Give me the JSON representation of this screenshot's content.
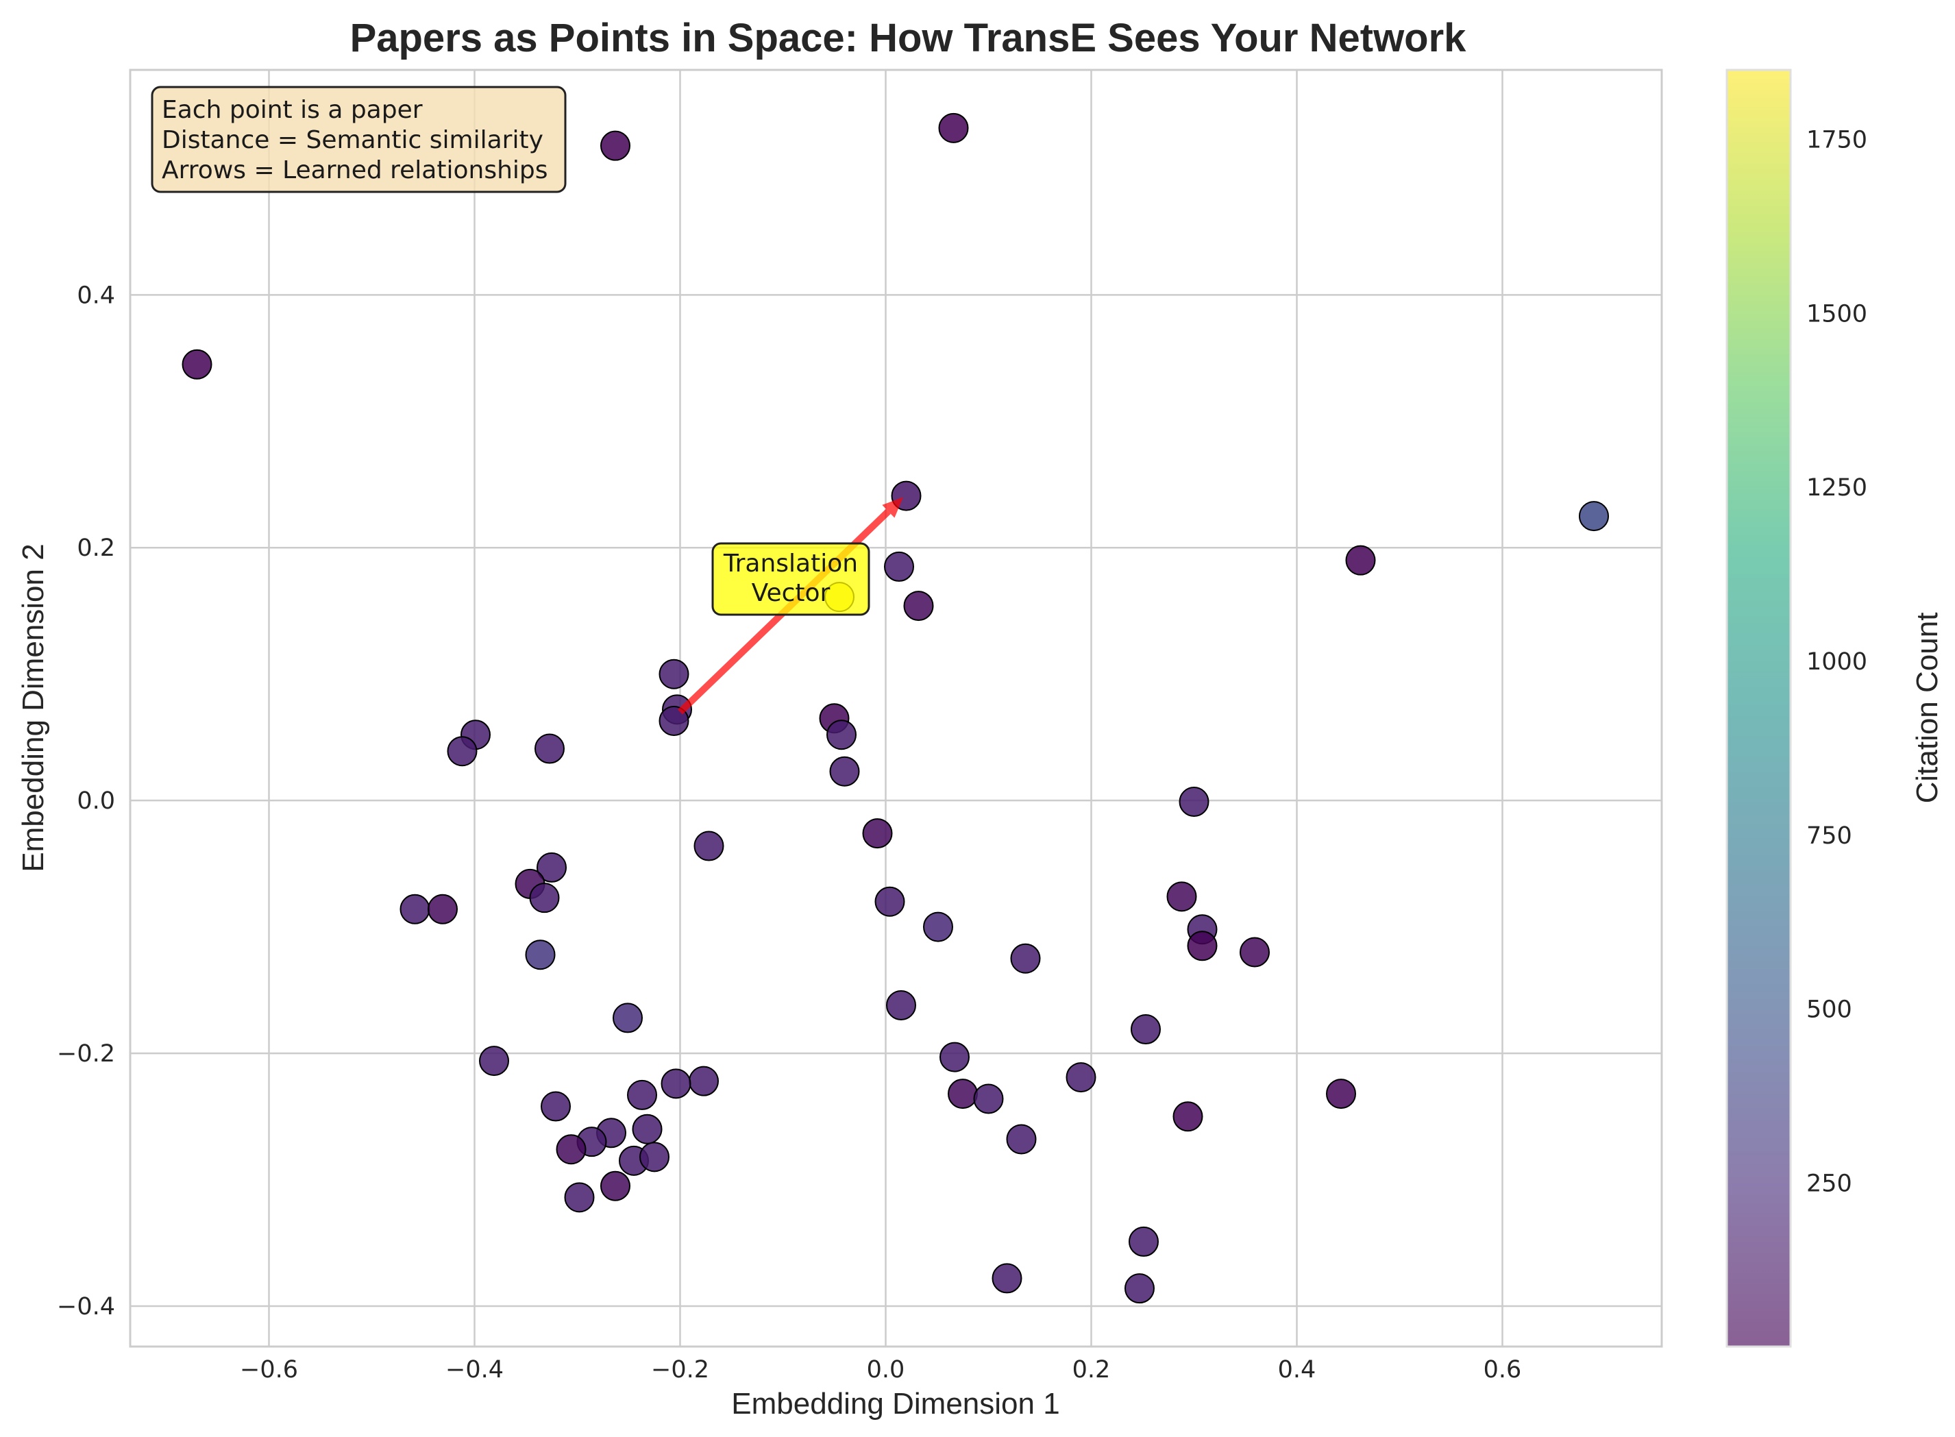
{
  "chart_data": {
    "type": "scatter",
    "title": "Papers as Points in Space: How TransE Sees Your Network",
    "xlabel": "Embedding Dimension 1",
    "ylabel": "Embedding Dimension 2",
    "xlim": [
      -0.735,
      0.755
    ],
    "ylim": [
      -0.432,
      0.578
    ],
    "xticks": [
      -0.6,
      -0.4,
      -0.2,
      0.0,
      0.2,
      0.4,
      0.6
    ],
    "yticks": [
      -0.4,
      -0.2,
      0.0,
      0.2,
      0.4
    ],
    "xtick_labels": [
      "−0.6",
      "−0.4",
      "−0.2",
      "0.0",
      "0.2",
      "0.4",
      "0.6"
    ],
    "ytick_labels": [
      "−0.4",
      "−0.2",
      "0.0",
      "0.2",
      "0.4"
    ],
    "grid": true,
    "colormap": "viridis",
    "colorbar": {
      "label": "Citation Count",
      "range": [
        15,
        1850
      ],
      "ticks": [
        250,
        500,
        750,
        1000,
        1250,
        1500,
        1750
      ],
      "tick_labels": [
        "250",
        "500",
        "750",
        "1000",
        "1250",
        "1500",
        "1750"
      ]
    },
    "info_box": {
      "lines": [
        "Each point is a paper",
        "Distance = Semantic similarity",
        "Arrows = Learned relationships"
      ],
      "background": "#f5deb3",
      "location": "top-left"
    },
    "arrow": {
      "from": [
        -0.2,
        0.07
      ],
      "to": [
        0.017,
        0.24
      ],
      "color": "#ff0000",
      "label": [
        "Translation",
        "Vector"
      ],
      "label_at": [
        -0.09,
        0.175
      ],
      "label_background": "#ffff00"
    },
    "points": [
      {
        "x": -0.67,
        "y": 0.345,
        "c": 20
      },
      {
        "x": -0.263,
        "y": 0.518,
        "c": 20
      },
      {
        "x": 0.066,
        "y": 0.532,
        "c": 20
      },
      {
        "x": 0.689,
        "y": 0.225,
        "c": 420
      },
      {
        "x": 0.462,
        "y": 0.19,
        "c": 20
      },
      {
        "x": 0.02,
        "y": 0.241,
        "c": 120
      },
      {
        "x": 0.013,
        "y": 0.185,
        "c": 160
      },
      {
        "x": -0.045,
        "y": 0.161,
        "c": 1840
      },
      {
        "x": 0.032,
        "y": 0.154,
        "c": 60
      },
      {
        "x": -0.206,
        "y": 0.1,
        "c": 160
      },
      {
        "x": -0.203,
        "y": 0.072,
        "c": 160
      },
      {
        "x": -0.206,
        "y": 0.063,
        "c": 160
      },
      {
        "x": -0.05,
        "y": 0.065,
        "c": 40
      },
      {
        "x": -0.043,
        "y": 0.052,
        "c": 160
      },
      {
        "x": -0.04,
        "y": 0.023,
        "c": 160
      },
      {
        "x": -0.399,
        "y": 0.052,
        "c": 160
      },
      {
        "x": -0.412,
        "y": 0.039,
        "c": 160
      },
      {
        "x": -0.327,
        "y": 0.041,
        "c": 160
      },
      {
        "x": 0.3,
        "y": -0.001,
        "c": 160
      },
      {
        "x": -0.008,
        "y": -0.026,
        "c": 60
      },
      {
        "x": -0.172,
        "y": -0.036,
        "c": 160
      },
      {
        "x": -0.325,
        "y": -0.053,
        "c": 160
      },
      {
        "x": -0.346,
        "y": -0.066,
        "c": 60
      },
      {
        "x": -0.332,
        "y": -0.077,
        "c": 160
      },
      {
        "x": 0.004,
        "y": -0.08,
        "c": 160
      },
      {
        "x": 0.288,
        "y": -0.076,
        "c": 60
      },
      {
        "x": -0.458,
        "y": -0.086,
        "c": 160
      },
      {
        "x": -0.431,
        "y": -0.086,
        "c": 60
      },
      {
        "x": 0.051,
        "y": -0.1,
        "c": 220
      },
      {
        "x": 0.308,
        "y": -0.102,
        "c": 160
      },
      {
        "x": 0.308,
        "y": -0.115,
        "c": 30
      },
      {
        "x": 0.359,
        "y": -0.12,
        "c": 60
      },
      {
        "x": 0.136,
        "y": -0.125,
        "c": 160
      },
      {
        "x": -0.336,
        "y": -0.122,
        "c": 300
      },
      {
        "x": 0.015,
        "y": -0.162,
        "c": 160
      },
      {
        "x": -0.251,
        "y": -0.172,
        "c": 250
      },
      {
        "x": 0.253,
        "y": -0.181,
        "c": 160
      },
      {
        "x": -0.381,
        "y": -0.206,
        "c": 160
      },
      {
        "x": 0.067,
        "y": -0.203,
        "c": 160
      },
      {
        "x": 0.19,
        "y": -0.219,
        "c": 160
      },
      {
        "x": -0.177,
        "y": -0.222,
        "c": 160
      },
      {
        "x": -0.204,
        "y": -0.224,
        "c": 160
      },
      {
        "x": 0.075,
        "y": -0.232,
        "c": 60
      },
      {
        "x": 0.1,
        "y": -0.236,
        "c": 160
      },
      {
        "x": -0.237,
        "y": -0.233,
        "c": 160
      },
      {
        "x": 0.443,
        "y": -0.232,
        "c": 40
      },
      {
        "x": -0.321,
        "y": -0.242,
        "c": 160
      },
      {
        "x": 0.294,
        "y": -0.25,
        "c": 40
      },
      {
        "x": -0.267,
        "y": -0.263,
        "c": 160
      },
      {
        "x": -0.232,
        "y": -0.26,
        "c": 160
      },
      {
        "x": 0.132,
        "y": -0.268,
        "c": 160
      },
      {
        "x": -0.286,
        "y": -0.27,
        "c": 160
      },
      {
        "x": -0.306,
        "y": -0.276,
        "c": 60
      },
      {
        "x": -0.245,
        "y": -0.285,
        "c": 160
      },
      {
        "x": -0.225,
        "y": -0.282,
        "c": 160
      },
      {
        "x": -0.263,
        "y": -0.305,
        "c": 60
      },
      {
        "x": -0.298,
        "y": -0.314,
        "c": 160
      },
      {
        "x": 0.251,
        "y": -0.349,
        "c": 160
      },
      {
        "x": 0.118,
        "y": -0.378,
        "c": 160
      },
      {
        "x": 0.247,
        "y": -0.386,
        "c": 160
      }
    ]
  }
}
